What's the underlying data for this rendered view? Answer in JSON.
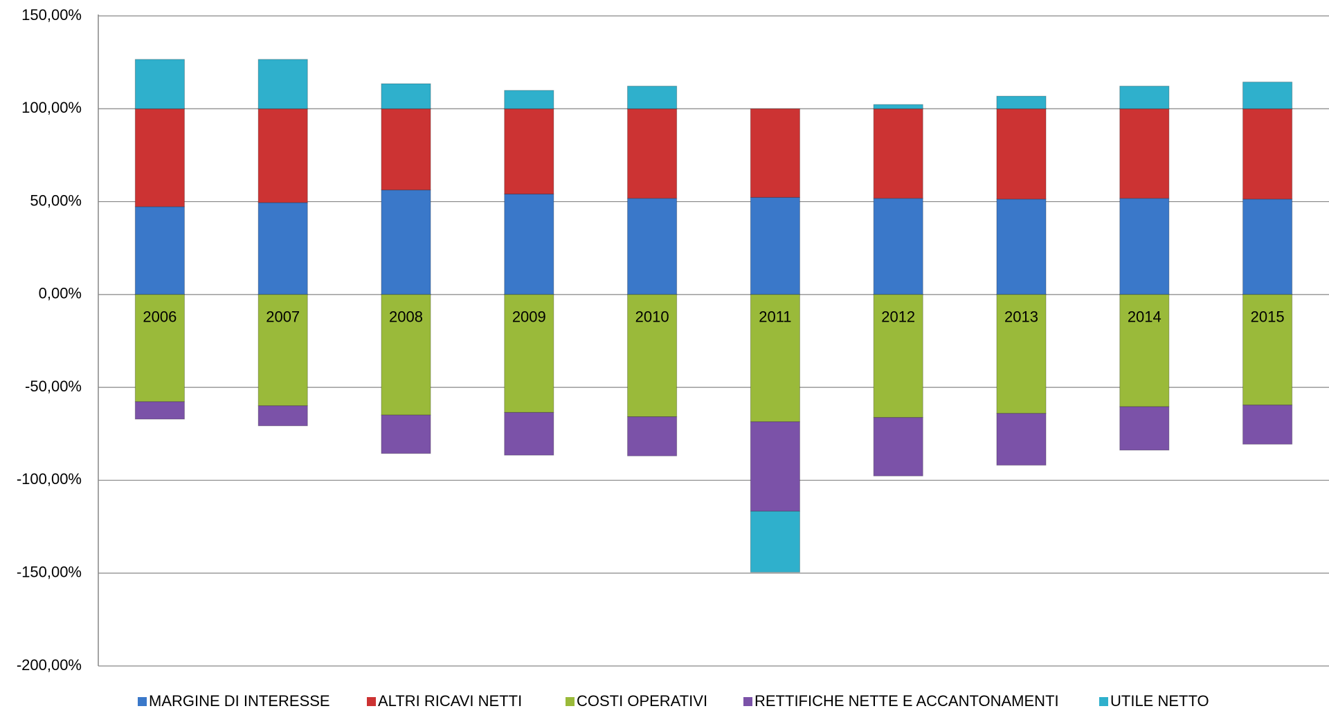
{
  "chart_data": {
    "type": "stacked-bar",
    "categories": [
      "2006",
      "2007",
      "2008",
      "2009",
      "2010",
      "2011",
      "2012",
      "2013",
      "2014",
      "2015"
    ],
    "series": [
      {
        "name": "MARGINE DI INTERESSE",
        "color": "#3a78c9",
        "values": [
          47.3,
          49.5,
          56.3,
          54.1,
          51.8,
          52.3,
          51.8,
          51.4,
          51.8,
          51.4
        ]
      },
      {
        "name": "ALTRI RICAVI NETTI",
        "color": "#cc3333",
        "values": [
          52.7,
          50.5,
          43.7,
          45.9,
          48.2,
          47.7,
          48.2,
          48.6,
          48.2,
          48.6
        ]
      },
      {
        "name": "COSTI OPERATIVI",
        "color": "#9aba3a",
        "values": [
          -57.7,
          -59.9,
          -64.9,
          -63.5,
          -65.8,
          -68.5,
          -66.2,
          -64.0,
          -60.4,
          -59.5
        ]
      },
      {
        "name": "RETTIFICHE NETTE E ACCANTONAMENTI",
        "color": "#7b52a8",
        "values": [
          -9.4,
          -10.8,
          -20.7,
          -23.0,
          -21.1,
          -48.2,
          -31.5,
          -27.9,
          -23.4,
          -21.1
        ]
      },
      {
        "name": "UTILE NETTO",
        "color": "#2fb0cc",
        "values": [
          26.6,
          26.6,
          13.5,
          9.9,
          12.2,
          -32.8,
          2.3,
          6.8,
          12.2,
          14.4
        ]
      }
    ],
    "ylim": [
      -200,
      150
    ],
    "yticks": [
      {
        "value": -200,
        "label": "-200,00%"
      },
      {
        "value": -150,
        "label": "-150,00%"
      },
      {
        "value": -100,
        "label": "-100,00%"
      },
      {
        "value": -50,
        "label": "-50,00%"
      },
      {
        "value": 0,
        "label": "0,00%"
      },
      {
        "value": 50,
        "label": "50,00%"
      },
      {
        "value": 100,
        "label": "100,00%"
      },
      {
        "value": 150,
        "label": "150,00%"
      }
    ],
    "grid": true,
    "legend": "bottom"
  }
}
